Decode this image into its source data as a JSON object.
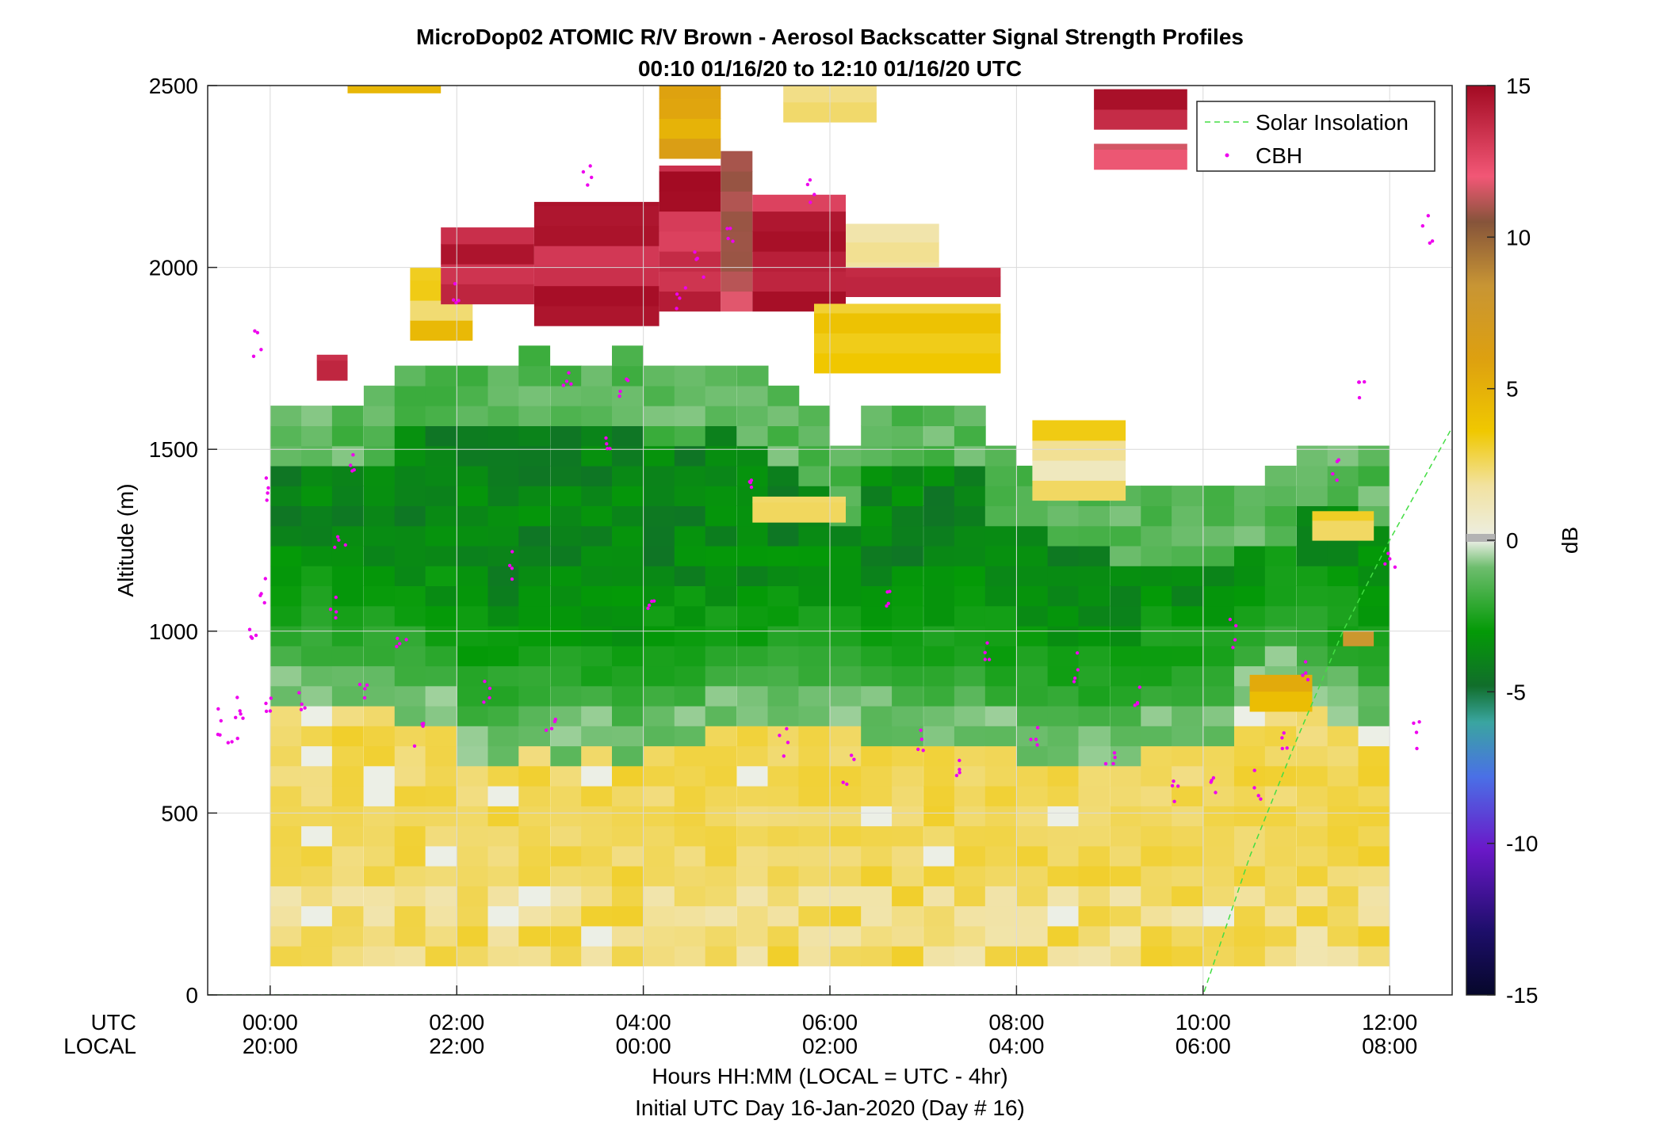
{
  "chart_data": {
    "type": "heatmap",
    "title": "MicroDop02 ATOMIC R/V Brown - Aerosol Backscatter Signal Strength Profiles",
    "subtitle": "00:10 01/16/20 to 12:10 01/16/20  UTC",
    "ylabel": "Altitude (m)",
    "xlabel": "Hours HH:MM  (LOCAL = UTC - 4hr)",
    "xlabel2": "Initial UTC Day 16-Jan-2020 (Day # 16)",
    "x_row_labels": [
      "UTC",
      "LOCAL"
    ],
    "x_ticks_utc": [
      "00:00",
      "02:00",
      "04:00",
      "06:00",
      "08:00",
      "10:00",
      "12:00"
    ],
    "x_ticks_local": [
      "20:00",
      "22:00",
      "00:00",
      "02:00",
      "04:00",
      "06:00",
      "08:00"
    ],
    "xlim_hours_utc": [
      -0.67,
      12.67
    ],
    "y_ticks": [
      "0",
      "500",
      "1000",
      "1500",
      "2000",
      "2500"
    ],
    "ylim": [
      0,
      2500
    ],
    "colorbar": {
      "label": "dB",
      "range": [
        -15,
        15
      ],
      "ticks": [
        "-15",
        "-10",
        "-5",
        "0",
        "5",
        "10",
        "15"
      ]
    },
    "legend": {
      "placement": "top-right",
      "entries": [
        {
          "label": "Solar Insolation",
          "color": "#44dd44",
          "style": "dashed"
        },
        {
          "label": "CBH",
          "color": "#ee00ee",
          "style": "dots"
        }
      ]
    },
    "grid": true,
    "columns_utc_hours": [
      0.17,
      0.5,
      0.83,
      1.17,
      1.5,
      1.83,
      2.17,
      2.5,
      2.83,
      3.17,
      3.5,
      3.83,
      4.17,
      4.5,
      4.83,
      5.17,
      5.5,
      5.83,
      6.17,
      6.5,
      6.83,
      7.17,
      7.5,
      7.83,
      8.17,
      8.5,
      8.83,
      9.17,
      9.5,
      9.83,
      10.17,
      10.5,
      10.83,
      11.17,
      11.5,
      11.83
    ],
    "profile_top_m": [
      1620,
      1610,
      1610,
      1650,
      1710,
      1710,
      1710,
      1710,
      1740,
      1710,
      1710,
      1740,
      1680,
      1680,
      1710,
      1680,
      1650,
      1590,
      1480,
      1620,
      1620,
      1620,
      1610,
      1480,
      1440,
      1400,
      1380,
      1360,
      1350,
      1350,
      1350,
      1380,
      1410,
      1510,
      1510,
      1460
    ],
    "surface_layer_top_m": [
      780,
      780,
      760,
      760,
      730,
      700,
      620,
      620,
      640,
      630,
      640,
      620,
      640,
      660,
      700,
      700,
      720,
      720,
      720,
      680,
      650,
      650,
      680,
      650,
      620,
      620,
      600,
      600,
      640,
      640,
      650,
      760,
      820,
      760,
      740,
      700
    ],
    "cloud_segments": [
      {
        "utc_start": 0.5,
        "utc_end": 0.83,
        "bottom_m": 1690,
        "top_m": 1760,
        "db": 14
      },
      {
        "utc_start": 1.5,
        "utc_end": 2.17,
        "bottom_m": 1800,
        "top_m": 2000,
        "db": 4
      },
      {
        "utc_start": 1.83,
        "utc_end": 2.83,
        "bottom_m": 1900,
        "top_m": 2110,
        "db": 15
      },
      {
        "utc_start": 2.83,
        "utc_end": 4.17,
        "bottom_m": 1840,
        "top_m": 2180,
        "db": 15
      },
      {
        "utc_start": 4.17,
        "utc_end": 4.83,
        "bottom_m": 1880,
        "top_m": 2280,
        "db": 15
      },
      {
        "utc_start": 4.83,
        "utc_end": 5.17,
        "bottom_m": 1880,
        "top_m": 2320,
        "db": 12
      },
      {
        "utc_start": 5.17,
        "utc_end": 6.17,
        "bottom_m": 1880,
        "top_m": 2200,
        "db": 15
      },
      {
        "utc_start": 4.17,
        "utc_end": 4.83,
        "bottom_m": 2300,
        "top_m": 2500,
        "db": 6
      },
      {
        "utc_start": 6.17,
        "utc_end": 7.17,
        "bottom_m": 1960,
        "top_m": 2120,
        "db": 3
      },
      {
        "utc_start": 6.17,
        "utc_end": 7.83,
        "bottom_m": 1920,
        "top_m": 2000,
        "db": 14
      },
      {
        "utc_start": 5.83,
        "utc_end": 7.83,
        "bottom_m": 1710,
        "top_m": 1900,
        "db": 4
      },
      {
        "utc_start": 5.5,
        "utc_end": 6.5,
        "bottom_m": 2400,
        "top_m": 2500,
        "db": 3
      },
      {
        "utc_start": 0.83,
        "utc_end": 1.83,
        "bottom_m": 2480,
        "top_m": 2500,
        "db": 4
      },
      {
        "utc_start": 8.83,
        "utc_end": 9.83,
        "bottom_m": 2380,
        "top_m": 2490,
        "db": 15
      },
      {
        "utc_start": 8.83,
        "utc_end": 9.83,
        "bottom_m": 2270,
        "top_m": 2340,
        "db": 12
      },
      {
        "utc_start": 8.17,
        "utc_end": 9.17,
        "bottom_m": 1360,
        "top_m": 1580,
        "db": 3
      },
      {
        "utc_start": 5.17,
        "utc_end": 6.17,
        "bottom_m": 1300,
        "top_m": 1370,
        "db": 4
      },
      {
        "utc_start": 11.17,
        "utc_end": 11.83,
        "bottom_m": 1250,
        "top_m": 1330,
        "db": 4
      },
      {
        "utc_start": 10.5,
        "utc_end": 11.17,
        "bottom_m": 780,
        "top_m": 880,
        "db": 5
      },
      {
        "utc_start": 11.5,
        "utc_end": 11.83,
        "bottom_m": 960,
        "top_m": 1000,
        "db": 8
      }
    ],
    "cbh_points_m": [
      {
        "utc": -0.5,
        "m": 750
      },
      {
        "utc": -0.4,
        "m": 720
      },
      {
        "utc": -0.3,
        "m": 780
      },
      {
        "utc": -0.2,
        "m": 960
      },
      {
        "utc": -0.15,
        "m": 1800
      },
      {
        "utc": -0.1,
        "m": 1100
      },
      {
        "utc": -0.05,
        "m": 1380
      },
      {
        "utc": 0.0,
        "m": 780
      },
      {
        "utc": 0.33,
        "m": 820
      },
      {
        "utc": 0.7,
        "m": 1050
      },
      {
        "utc": 0.75,
        "m": 1220
      },
      {
        "utc": 0.85,
        "m": 1460
      },
      {
        "utc": 1.0,
        "m": 820
      },
      {
        "utc": 1.4,
        "m": 1000
      },
      {
        "utc": 1.6,
        "m": 720
      },
      {
        "utc": 2.0,
        "m": 1920
      },
      {
        "utc": 2.3,
        "m": 820
      },
      {
        "utc": 2.6,
        "m": 1180
      },
      {
        "utc": 3.0,
        "m": 750
      },
      {
        "utc": 3.2,
        "m": 1700
      },
      {
        "utc": 3.4,
        "m": 2240
      },
      {
        "utc": 3.6,
        "m": 1500
      },
      {
        "utc": 3.8,
        "m": 1650
      },
      {
        "utc": 4.1,
        "m": 1100
      },
      {
        "utc": 4.4,
        "m": 1900
      },
      {
        "utc": 4.6,
        "m": 2000
      },
      {
        "utc": 4.9,
        "m": 2100
      },
      {
        "utc": 5.2,
        "m": 1400
      },
      {
        "utc": 5.5,
        "m": 700
      },
      {
        "utc": 5.8,
        "m": 2200
      },
      {
        "utc": 6.2,
        "m": 620
      },
      {
        "utc": 6.6,
        "m": 1100
      },
      {
        "utc": 7.0,
        "m": 700
      },
      {
        "utc": 7.4,
        "m": 600
      },
      {
        "utc": 7.7,
        "m": 950
      },
      {
        "utc": 8.2,
        "m": 700
      },
      {
        "utc": 8.6,
        "m": 900
      },
      {
        "utc": 9.0,
        "m": 650
      },
      {
        "utc": 9.3,
        "m": 820
      },
      {
        "utc": 9.7,
        "m": 560
      },
      {
        "utc": 10.1,
        "m": 600
      },
      {
        "utc": 10.3,
        "m": 1000
      },
      {
        "utc": 10.6,
        "m": 580
      },
      {
        "utc": 10.9,
        "m": 700
      },
      {
        "utc": 11.1,
        "m": 880
      },
      {
        "utc": 11.4,
        "m": 1460
      },
      {
        "utc": 11.7,
        "m": 1650
      },
      {
        "utc": 12.0,
        "m": 1200
      },
      {
        "utc": 12.3,
        "m": 720
      },
      {
        "utc": 12.4,
        "m": 2100
      }
    ],
    "solar_insolation": [
      {
        "utc": -0.67,
        "m": 0
      },
      {
        "utc": 10.0,
        "m": 0
      },
      {
        "utc": 10.5,
        "m": 380
      },
      {
        "utc": 11.0,
        "m": 700
      },
      {
        "utc": 11.5,
        "m": 1000
      },
      {
        "utc": 12.0,
        "m": 1250
      },
      {
        "utc": 12.67,
        "m": 1560
      }
    ]
  }
}
